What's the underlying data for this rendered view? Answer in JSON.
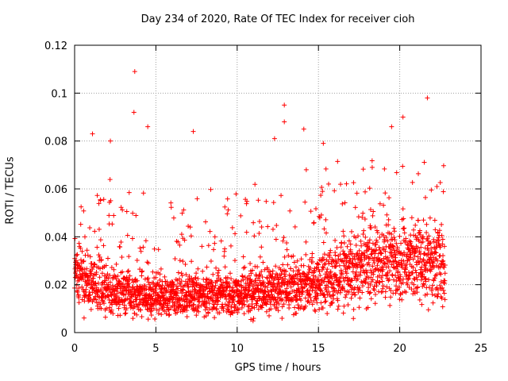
{
  "chart_data": {
    "type": "scatter",
    "title": "Day 234 of 2020, Rate Of TEC Index for receiver cioh",
    "xlabel": "GPS time / hours",
    "ylabel": "ROTI / TECUs",
    "xlim": [
      0,
      25
    ],
    "ylim": [
      0,
      0.12
    ],
    "xticks": [
      "0",
      "5",
      "10",
      "15",
      "20",
      "25"
    ],
    "yticks": [
      "0",
      "0.02",
      "0.04",
      "0.06",
      "0.08",
      "0.1",
      "0.12"
    ],
    "grid": true,
    "marker": "+",
    "color": "#ff0000",
    "series": [
      {
        "x_range": [
          0,
          22.8
        ],
        "baseline_profile": [
          [
            0.0,
            0.025
          ],
          [
            1.0,
            0.02
          ],
          [
            2.0,
            0.018
          ],
          [
            3.0,
            0.017
          ],
          [
            4.0,
            0.016
          ],
          [
            5.0,
            0.015
          ],
          [
            6.0,
            0.015
          ],
          [
            7.0,
            0.016
          ],
          [
            8.0,
            0.016
          ],
          [
            9.0,
            0.016
          ],
          [
            10.0,
            0.016
          ],
          [
            11.0,
            0.017
          ],
          [
            12.0,
            0.018
          ],
          [
            13.0,
            0.019
          ],
          [
            14.0,
            0.02
          ],
          [
            15.0,
            0.02
          ],
          [
            16.0,
            0.024
          ],
          [
            17.0,
            0.026
          ],
          [
            18.0,
            0.027
          ],
          [
            19.0,
            0.029
          ],
          [
            20.0,
            0.03
          ],
          [
            21.0,
            0.03
          ],
          [
            22.0,
            0.029
          ],
          [
            22.8,
            0.028
          ]
        ],
        "notable_points": [
          [
            3.7,
            0.109
          ],
          [
            3.65,
            0.092
          ],
          [
            4.5,
            0.086
          ],
          [
            7.3,
            0.084
          ],
          [
            12.9,
            0.095
          ],
          [
            12.9,
            0.088
          ],
          [
            14.1,
            0.085
          ],
          [
            15.3,
            0.079
          ],
          [
            20.2,
            0.09
          ],
          [
            21.7,
            0.098
          ],
          [
            19.5,
            0.086
          ],
          [
            2.2,
            0.08
          ],
          [
            1.1,
            0.083
          ],
          [
            12.3,
            0.081
          ]
        ]
      }
    ]
  }
}
